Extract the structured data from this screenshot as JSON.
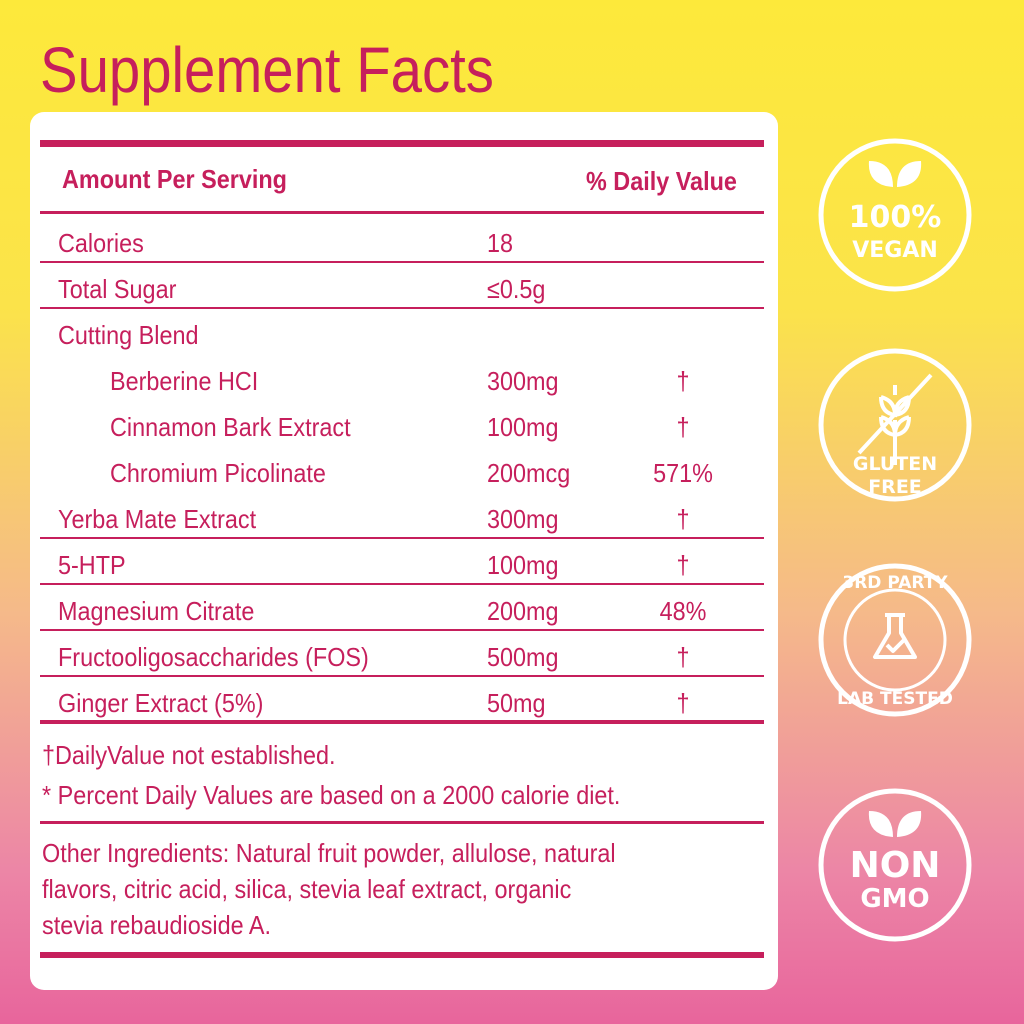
{
  "title": "Supplement Facts",
  "header": {
    "amount": "Amount Per Serving",
    "daily_value": "% Daily Value"
  },
  "rows": [
    {
      "name": "Calories",
      "amount": "18"
    },
    {
      "name": "Total Sugar",
      "amount": "≤0.5g"
    },
    {
      "name": "Cutting Blend",
      "items": [
        {
          "name": "Berberine HCI",
          "amount": "300mg",
          "dv": "†"
        },
        {
          "name": "Cinnamon Bark Extract",
          "amount": "100mg",
          "dv": "†"
        },
        {
          "name": "Chromium Picolinate",
          "amount": "200mcg",
          "dv": "571%"
        }
      ]
    },
    {
      "name": "Yerba Mate Extract",
      "amount": "300mg",
      "dv": "†"
    },
    {
      "name": "5-HTP",
      "amount": "100mg",
      "dv": "†"
    },
    {
      "name": "Magnesium Citrate",
      "amount": "200mg",
      "dv": "48%"
    },
    {
      "name": "Fructooligosaccharides (FOS)",
      "amount": "500mg",
      "dv": "†"
    },
    {
      "name": "Ginger Extract (5%)",
      "amount": "50mg",
      "dv": "†"
    }
  ],
  "footnotes": [
    "†DailyValue not established.",
    "* Percent Daily Values are based on a 2000 calorie diet."
  ],
  "other_ingredients": [
    "Other Ingredients: Natural fruit powder, allulose, natural",
    "flavors, citric acid, silica, stevia leaf extract, organic",
    "stevia rebaudioside A."
  ],
  "badges": [
    {
      "lines": [
        "100%",
        "VEGAN"
      ]
    },
    {
      "lines": [
        "GLUTEN",
        "FREE"
      ]
    },
    {
      "lines": [
        "3RD PARTY",
        "LAB TESTED"
      ]
    },
    {
      "lines": [
        "NON",
        "GMO"
      ]
    }
  ]
}
